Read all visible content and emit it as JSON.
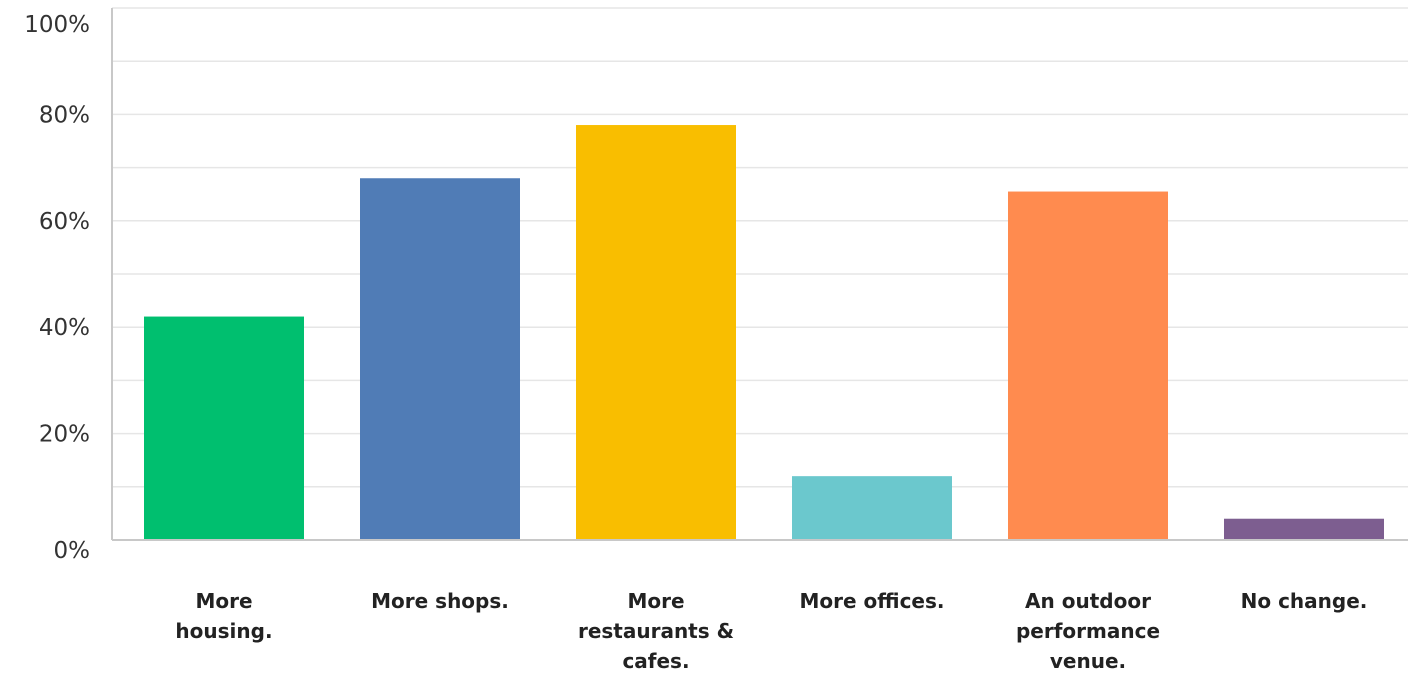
{
  "chart_data": {
    "type": "bar",
    "categories": [
      "More housing.",
      "More shops.",
      "More restaurants & cafes.",
      "More offices.",
      "An outdoor performance venue.",
      "No change."
    ],
    "category_lines": [
      [
        "More",
        "housing."
      ],
      [
        "More shops."
      ],
      [
        "More",
        "restaurants &",
        "cafes."
      ],
      [
        "More offices."
      ],
      [
        "An outdoor",
        "performance",
        "venue."
      ],
      [
        "No change."
      ]
    ],
    "values": [
      42,
      68,
      78,
      12,
      65.5,
      4
    ],
    "colors": [
      "#00bf6f",
      "#507cb6",
      "#f9be00",
      "#6bc8cd",
      "#ff8b4f",
      "#7d5e90"
    ],
    "y_ticks": [
      "0%",
      "20%",
      "40%",
      "60%",
      "80%",
      "100%"
    ],
    "ylim": [
      0,
      100
    ],
    "grid": true,
    "title": "",
    "xlabel": "",
    "ylabel": ""
  }
}
